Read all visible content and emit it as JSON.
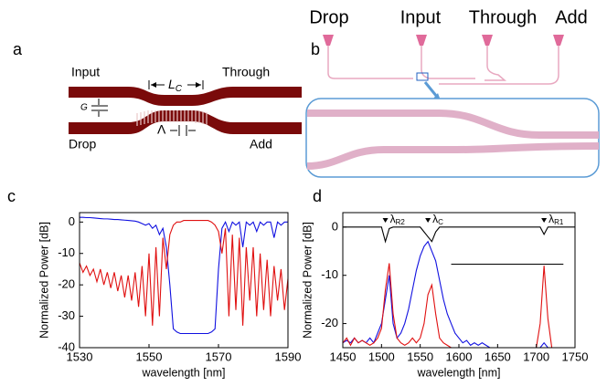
{
  "panel_labels": [
    "a",
    "b",
    "c",
    "d"
  ],
  "diagram_a": {
    "input": "Input",
    "through": "Through",
    "drop": "Drop",
    "add": "Add",
    "gap": "G",
    "length": {
      "symbol": "L",
      "sub": "C"
    },
    "period": "Λ"
  },
  "diagram_b": {
    "ports": [
      "Drop",
      "Input",
      "Through",
      "Add"
    ]
  },
  "chart_data": [
    {
      "type": "line",
      "xlabel": "wavelength [nm]",
      "ylabel": "Normalized Power [dB]",
      "xlim": [
        1530,
        1590
      ],
      "xticks": [
        1530,
        1550,
        1570,
        1590
      ],
      "ylim": [
        -40,
        3
      ],
      "yticks": [
        0,
        -10,
        -20,
        -30,
        -40
      ],
      "x": [
        1530,
        1531,
        1532,
        1533,
        1534,
        1535,
        1536,
        1537,
        1538,
        1539,
        1540,
        1541,
        1542,
        1543,
        1544,
        1545,
        1546,
        1547,
        1548,
        1549,
        1550,
        1551,
        1552,
        1553,
        1554,
        1555,
        1556,
        1557,
        1558,
        1559,
        1560,
        1561,
        1562,
        1563,
        1564,
        1565,
        1566,
        1567,
        1568,
        1569,
        1570,
        1571,
        1572,
        1573,
        1574,
        1575,
        1576,
        1577,
        1578,
        1579,
        1580,
        1581,
        1582,
        1583,
        1584,
        1585,
        1586,
        1587,
        1588,
        1589,
        1590
      ],
      "series": [
        {
          "color": "#1010e0",
          "values": [
            1.5,
            1.5,
            1.4,
            1.4,
            1.3,
            1.2,
            1.1,
            1.0,
            1.0,
            0.9,
            0.8,
            0.8,
            0.7,
            0.6,
            0.5,
            0.4,
            0.3,
            0,
            -0.5,
            -1,
            -0.5,
            -2,
            -1,
            -4,
            -2,
            -8,
            -20,
            -34,
            -35,
            -35.5,
            -35.5,
            -35.5,
            -35.5,
            -35.5,
            -35.5,
            -35.5,
            -35.5,
            -35.5,
            -35,
            -34,
            -15,
            -2,
            0,
            -3,
            0,
            -1,
            0,
            -8,
            0,
            -1,
            0,
            -3,
            0,
            -1,
            0,
            0,
            -5,
            0,
            -1,
            0,
            0
          ]
        },
        {
          "color": "#e01010",
          "values": [
            -13,
            -16,
            -14,
            -17,
            -15,
            -19,
            -15,
            -20,
            -16,
            -21,
            -16,
            -22,
            -17,
            -24,
            -17,
            -25,
            -16,
            -27,
            -14,
            -30,
            -10,
            -33,
            -8,
            -30,
            -5,
            -15,
            -4,
            -1,
            0,
            0,
            0.5,
            0.5,
            0.5,
            0.5,
            0.5,
            0.5,
            0.5,
            0.5,
            0,
            -1,
            -3,
            -10,
            -2,
            -30,
            -4,
            -28,
            -5,
            -33,
            -8,
            -25,
            -8,
            -30,
            -10,
            -28,
            -12,
            -30,
            -14,
            -25,
            -15,
            -28,
            -18
          ]
        }
      ]
    },
    {
      "type": "line",
      "xlabel": "wavelength [nm]",
      "ylabel": "Normalized Power [dB]",
      "xlim": [
        1450,
        1750
      ],
      "xticks": [
        1450,
        1500,
        1550,
        1600,
        1650,
        1700,
        1750
      ],
      "ylim": [
        -25,
        3
      ],
      "yticks": [
        0,
        -10,
        -20
      ],
      "x": [
        1450,
        1455,
        1460,
        1465,
        1470,
        1475,
        1480,
        1485,
        1490,
        1495,
        1500,
        1505,
        1510,
        1515,
        1520,
        1525,
        1530,
        1535,
        1540,
        1545,
        1550,
        1555,
        1560,
        1565,
        1570,
        1575,
        1580,
        1585,
        1590,
        1595,
        1600,
        1605,
        1610,
        1615,
        1620,
        1625,
        1630,
        1635,
        1640,
        1645,
        1650,
        1655,
        1660,
        1665,
        1670,
        1675,
        1680,
        1685,
        1690,
        1695,
        1700,
        1705,
        1710,
        1715,
        1720,
        1725,
        1730,
        1735,
        1740,
        1745,
        1750
      ],
      "series": [
        {
          "color": "#1010e0",
          "values": [
            -24,
            -23.5,
            -24,
            -23,
            -24,
            -23.5,
            -24,
            -23,
            -24,
            -22,
            -20,
            -15,
            -10,
            -20,
            -23,
            -22,
            -20,
            -17,
            -13,
            -9,
            -6,
            -4,
            -3,
            -5,
            -7,
            -11,
            -15,
            -18,
            -20,
            -22,
            -23,
            -24,
            -23.5,
            -24.5,
            -24,
            -24.5,
            -24,
            -24.5,
            -25,
            -25,
            -25,
            -25,
            -25,
            -25,
            -25,
            -25,
            -25,
            -25,
            -25,
            -25,
            -25,
            -25,
            -24,
            -25,
            -25,
            -25,
            -25,
            -25,
            -25,
            -25,
            -25
          ]
        },
        {
          "color": "#e01010",
          "values": [
            -24,
            -23,
            -24.5,
            -23,
            -24,
            -23.5,
            -24,
            -24.5,
            -24,
            -23,
            -21,
            -13,
            -7.5,
            -18,
            -23,
            -24,
            -24.5,
            -24,
            -23,
            -24,
            -23,
            -20,
            -14,
            -12,
            -18,
            -23,
            -24,
            -24.5,
            -25,
            -25,
            -25,
            -25,
            -25,
            -25,
            -25,
            -25,
            -25,
            -25,
            -25,
            -25,
            -25,
            -25,
            -25,
            -25,
            -25,
            -25,
            -25,
            -25,
            -25,
            -25,
            -25,
            -20,
            -8,
            -19,
            -25,
            -25,
            -25,
            -25,
            -25,
            -25,
            -25
          ]
        },
        {
          "color": "#000000",
          "values": [
            0,
            0,
            0,
            0,
            0,
            0,
            0,
            0,
            0,
            0,
            0,
            -3,
            -0.3,
            0,
            0,
            0,
            0,
            0,
            0,
            0,
            0,
            -1,
            -2,
            -3,
            -1,
            0,
            0,
            0,
            0,
            0,
            0,
            0,
            0,
            0,
            0,
            0,
            0,
            0,
            0,
            0,
            0,
            0,
            0,
            0,
            0,
            0,
            0,
            0,
            0,
            0,
            0,
            0,
            -1.5,
            0,
            0,
            0,
            0,
            0,
            0,
            0,
            0
          ]
        }
      ],
      "hline": {
        "y": -7.7,
        "xmin": 1590,
        "xmax": 1735
      },
      "annotations": [
        {
          "x": 1505,
          "symbol": "λ",
          "sub": "R2"
        },
        {
          "x": 1560,
          "symbol": "λ",
          "sub": "C"
        },
        {
          "x": 1710,
          "symbol": "λ",
          "sub": "R1"
        }
      ]
    }
  ]
}
